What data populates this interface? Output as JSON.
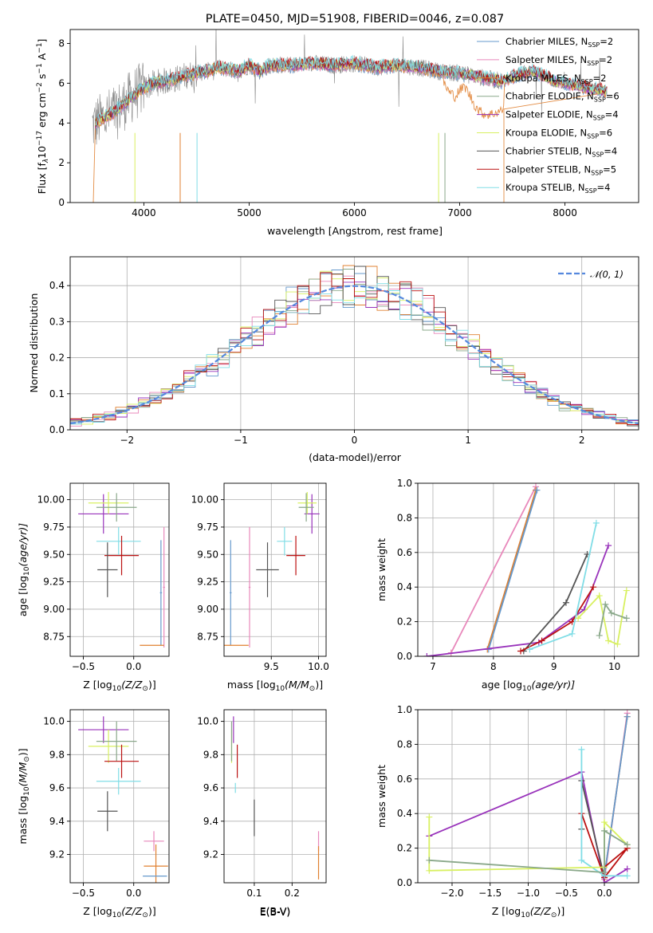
{
  "colors": {
    "CM": "#6699cc",
    "SM": "#e888bb",
    "KM": "#e08030",
    "CE": "#8aa88a",
    "SE": "#9933bb",
    "KE": "#d8f060",
    "CS": "#555555",
    "SS": "#bb1111",
    "KS": "#80dde6",
    "gauss": "#5588dd",
    "data": "#888888"
  },
  "chart_data": [
    {
      "id": "spectrum",
      "type": "line",
      "title": "PLATE=0450, MJD=51908, FIBERID=0046, z=0.087",
      "xlabel": "wavelength [Angstrom, rest frame]",
      "ylabel_main": "Flux [f",
      "ylabel_sub": "λ",
      "ylabel_rest": "10",
      "ylabel_exp1": "−17",
      "ylabel_mid": " erg cm",
      "ylabel_exp2": "−2",
      "ylabel_mid2": " s",
      "ylabel_exp3": "−1",
      "ylabel_mid3": " A",
      "ylabel_exp4": "−1",
      "ylabel_end": "]",
      "xlim": [
        3300,
        8700
      ],
      "ylim": [
        0,
        8.7
      ],
      "xticks": [
        "4000",
        "5000",
        "6000",
        "7000",
        "8000"
      ],
      "yticks": [
        "0",
        "2",
        "4",
        "6",
        "8"
      ],
      "xtickvals": [
        4000,
        5000,
        6000,
        7000,
        8000
      ],
      "ytickvals": [
        0,
        2,
        4,
        6,
        8
      ],
      "continuum_x": [
        3520,
        3600,
        3700,
        3800,
        3900,
        4000,
        4100,
        4200,
        4300,
        4400,
        4500,
        4600,
        4700,
        4800,
        4900,
        5000,
        5100,
        5200,
        5400,
        5600,
        5800,
        6000,
        6200,
        6400,
        6600,
        6800,
        7000,
        7100,
        7200,
        7300,
        7400,
        7500,
        7600,
        7700,
        7800,
        7900,
        8000,
        8100,
        8200,
        8300,
        8400
      ],
      "continuum_y": [
        3.9,
        4.2,
        4.5,
        4.9,
        5.4,
        5.8,
        6.0,
        6.1,
        6.2,
        6.4,
        6.5,
        6.6,
        6.8,
        6.7,
        6.6,
        6.9,
        6.6,
        6.9,
        6.9,
        7.0,
        6.9,
        7.0,
        6.8,
        6.9,
        6.8,
        6.6,
        6.5,
        6.4,
        6.3,
        6.2,
        6.1,
        6.3,
        6.5,
        6.6,
        6.4,
        6.1,
        6.0,
        5.9,
        5.8,
        5.7,
        5.6
      ],
      "red_dip_x": [
        6860,
        6900,
        6960,
        7000,
        7050,
        7100,
        7150,
        7200,
        7250,
        7300,
        7350,
        7400
      ],
      "red_dip_y": [
        6.0,
        5.6,
        5.4,
        5.7,
        5.9,
        5.4,
        4.9,
        4.6,
        4.5,
        4.5,
        4.6,
        4.7
      ],
      "legend": [
        {
          "name": "Chabrier MILES, N",
          "sub": "SSP",
          "tail": "=2",
          "key": "CM"
        },
        {
          "name": "Salpeter MILES, N",
          "sub": "SSP",
          "tail": "=2",
          "key": "SM"
        },
        {
          "name": "Kroupa MILES, N",
          "sub": "SSP",
          "tail": "=2",
          "key": "KM"
        },
        {
          "name": "Chabrier ELODIE, N",
          "sub": "SSP",
          "tail": "=6",
          "key": "CE"
        },
        {
          "name": "Salpeter ELODIE, N",
          "sub": "SSP",
          "tail": "=4",
          "key": "SE"
        },
        {
          "name": "Kroupa ELODIE, N",
          "sub": "SSP",
          "tail": "=6",
          "key": "KE"
        },
        {
          "name": "Chabrier STELIB, N",
          "sub": "SSP",
          "tail": "=4",
          "key": "CS"
        },
        {
          "name": "Salpeter STELIB, N",
          "sub": "SSP",
          "tail": "=5",
          "key": "SS"
        },
        {
          "name": "Kroupa STELIB, N",
          "sub": "SSP",
          "tail": "=4",
          "key": "KS"
        }
      ]
    },
    {
      "id": "residuals",
      "type": "histogram",
      "xlabel": "(data-model)/error",
      "ylabel": "Normed distribution",
      "xlim": [
        -2.5,
        2.5
      ],
      "ylim": [
        0,
        0.48
      ],
      "xticks": [
        "−2",
        "−1",
        "0",
        "1",
        "2"
      ],
      "xtickvals": [
        -2,
        -1,
        0,
        1,
        2
      ],
      "yticks": [
        "0.0",
        "0.1",
        "0.2",
        "0.3",
        "0.4"
      ],
      "ytickvals": [
        0,
        0.1,
        0.2,
        0.3,
        0.4
      ],
      "legend_label": "𝒩(0, 1)",
      "bin_width": 0.1
    },
    {
      "id": "age_Z",
      "type": "errorbar",
      "xlabel": "Z [log",
      "xlabel_sub": "10",
      "xlabel_rest": "(Z/Z",
      "xlabel_sub2": "⊙",
      "xlabel_end": ")]",
      "ylabel": "age  [log",
      "ylabel_sub": "10",
      "ylabel_rest": "(age/yr)]",
      "xlim": [
        -0.63,
        0.35
      ],
      "ylim": [
        8.57,
        10.15
      ],
      "xticks": [
        "−0.5",
        "0.0"
      ],
      "xtickvals": [
        -0.5,
        0
      ],
      "yticks": [
        "8.75",
        "9.00",
        "9.25",
        "9.50",
        "9.75",
        "10.00"
      ],
      "ytickvals": [
        8.75,
        9,
        9.25,
        9.5,
        9.75,
        10
      ],
      "points": [
        {
          "key": "SE",
          "x": -0.3,
          "xe": 0.25,
          "y": 9.87,
          "ye": 0.18
        },
        {
          "key": "KE",
          "x": -0.25,
          "xe": 0.2,
          "y": 9.97,
          "ye": 0.1
        },
        {
          "key": "CE",
          "x": -0.17,
          "xe": 0.2,
          "y": 9.93,
          "ye": 0.13
        },
        {
          "key": "KS",
          "x": -0.15,
          "xe": 0.22,
          "y": 9.62,
          "ye": 0.13
        },
        {
          "key": "SS",
          "x": -0.12,
          "xe": 0.17,
          "y": 9.49,
          "ye": 0.18
        },
        {
          "key": "CS",
          "x": -0.26,
          "xe": 0.1,
          "y": 9.36,
          "ye": 0.25
        },
        {
          "key": "SM",
          "x": 0.3,
          "xe": 0.01,
          "y": 9.2,
          "ye": 0.55
        },
        {
          "key": "CM",
          "x": 0.27,
          "xe": 0.01,
          "y": 9.15,
          "ye": 0.48
        },
        {
          "key": "KM",
          "x": 0.18,
          "xe": 0.12,
          "y": 8.67,
          "ye": 0.0
        }
      ]
    },
    {
      "id": "age_mass",
      "type": "errorbar",
      "xlabel": "mass [log",
      "xlabel_sub": "10",
      "xlabel_rest": "(M/M",
      "xlabel_sub2": "⊙",
      "xlabel_end": ")]",
      "xlim": [
        9.0,
        10.08
      ],
      "ylim": [
        8.57,
        10.15
      ],
      "xticks": [
        "9.5",
        "10.0"
      ],
      "xtickvals": [
        9.5,
        10
      ],
      "yticks": [
        "8.75",
        "9.00",
        "9.25",
        "9.50",
        "9.75",
        "10.00"
      ],
      "ytickvals": [
        8.75,
        9,
        9.25,
        9.5,
        9.75,
        10
      ],
      "points": [
        {
          "key": "SE",
          "x": 9.93,
          "xe": 0.08,
          "y": 9.87,
          "ye": 0.18
        },
        {
          "key": "KE",
          "x": 9.88,
          "xe": 0.1,
          "y": 9.97,
          "ye": 0.1
        },
        {
          "key": "CE",
          "x": 9.87,
          "xe": 0.08,
          "y": 9.93,
          "ye": 0.13
        },
        {
          "key": "KS",
          "x": 9.64,
          "xe": 0.08,
          "y": 9.62,
          "ye": 0.13
        },
        {
          "key": "SS",
          "x": 9.76,
          "xe": 0.1,
          "y": 9.49,
          "ye": 0.18
        },
        {
          "key": "CS",
          "x": 9.46,
          "xe": 0.12,
          "y": 9.36,
          "ye": 0.25
        },
        {
          "key": "SM",
          "x": 9.27,
          "xe": 0.01,
          "y": 9.2,
          "ye": 0.55
        },
        {
          "key": "CM",
          "x": 9.07,
          "xe": 0.01,
          "y": 9.15,
          "ye": 0.48
        },
        {
          "key": "KM",
          "x": 9.13,
          "xe": 0.13,
          "y": 8.67,
          "ye": 0.0
        }
      ]
    },
    {
      "id": "weight_age",
      "type": "line",
      "xlabel": "age  [log",
      "xlabel_sub": "10",
      "xlabel_rest": "(age/yr)]",
      "ylabel": "mass weight",
      "xlim": [
        6.75,
        10.4
      ],
      "ylim": [
        0,
        1.0
      ],
      "xticks": [
        "7",
        "8",
        "9",
        "10"
      ],
      "xtickvals": [
        7,
        8,
        9,
        10
      ],
      "yticks": [
        "0.0",
        "0.2",
        "0.4",
        "0.6",
        "0.8",
        "1.0"
      ],
      "ytickvals": [
        0,
        0.2,
        0.4,
        0.6,
        0.8,
        1.0
      ],
      "series": [
        {
          "key": "SM",
          "x": [
            7.3,
            8.7
          ],
          "y": [
            0.02,
            0.98
          ]
        },
        {
          "key": "KM",
          "x": [
            7.9,
            8.7
          ],
          "y": [
            0.04,
            0.96
          ]
        },
        {
          "key": "CM",
          "x": [
            7.92,
            8.72
          ],
          "y": [
            0.04,
            0.96
          ]
        },
        {
          "key": "SE",
          "x": [
            6.9,
            8.75,
            9.5,
            9.9
          ],
          "y": [
            0.0,
            0.08,
            0.27,
            0.64
          ]
        },
        {
          "key": "CS",
          "x": [
            8.5,
            9.2,
            9.55
          ],
          "y": [
            0.03,
            0.31,
            0.59
          ]
        },
        {
          "key": "SS",
          "x": [
            8.45,
            8.8,
            9.3,
            9.65
          ],
          "y": [
            0.03,
            0.09,
            0.2,
            0.4
          ]
        },
        {
          "key": "KS",
          "x": [
            8.6,
            9.3,
            9.7
          ],
          "y": [
            0.04,
            0.13,
            0.77
          ]
        },
        {
          "key": "KE",
          "x": [
            9.4,
            9.75,
            9.9,
            10.05,
            10.2
          ],
          "y": [
            0.22,
            0.35,
            0.09,
            0.07,
            0.38
          ]
        },
        {
          "key": "CE",
          "x": [
            9.75,
            9.85,
            9.95,
            10.2
          ],
          "y": [
            0.12,
            0.3,
            0.25,
            0.22
          ]
        }
      ]
    },
    {
      "id": "mass_Z",
      "type": "errorbar",
      "xlabel": "Z [log",
      "xlabel_sub": "10",
      "xlabel_rest": "(Z/Z",
      "xlabel_sub2": "⊙",
      "xlabel_end": ")]",
      "ylabel": "mass [log",
      "ylabel_sub": "10",
      "ylabel_rest": "(M/M",
      "ylabel_sub2": "⊙",
      "ylabel_end": ")]",
      "xlim": [
        -0.63,
        0.35
      ],
      "ylim": [
        9.03,
        10.07
      ],
      "xticks": [
        "−0.5",
        "0.0"
      ],
      "xtickvals": [
        -0.5,
        0
      ],
      "yticks": [
        "9.2",
        "9.4",
        "9.6",
        "9.8",
        "10.0"
      ],
      "ytickvals": [
        9.2,
        9.4,
        9.6,
        9.8,
        10.0
      ],
      "points": [
        {
          "key": "SE",
          "x": -0.3,
          "xe": 0.25,
          "y": 9.95,
          "ye": 0.08
        },
        {
          "key": "KE",
          "x": -0.25,
          "xe": 0.2,
          "y": 9.85,
          "ye": 0.1
        },
        {
          "key": "CE",
          "x": -0.17,
          "xe": 0.2,
          "y": 9.88,
          "ye": 0.12
        },
        {
          "key": "SS",
          "x": -0.12,
          "xe": 0.17,
          "y": 9.76,
          "ye": 0.1
        },
        {
          "key": "KS",
          "x": -0.15,
          "xe": 0.22,
          "y": 9.64,
          "ye": 0.08
        },
        {
          "key": "CS",
          "x": -0.26,
          "xe": 0.1,
          "y": 9.46,
          "ye": 0.12
        },
        {
          "key": "SM",
          "x": 0.2,
          "xe": 0.1,
          "y": 9.28,
          "ye": 0.06
        },
        {
          "key": "KM",
          "x": 0.22,
          "xe": 0.12,
          "y": 9.13,
          "ye": 0.13
        },
        {
          "key": "CM",
          "x": 0.21,
          "xe": 0.12,
          "y": 9.07,
          "ye": 0.0
        }
      ]
    },
    {
      "id": "mass_ebv",
      "type": "errorbar",
      "xlabel": "E(B-V)",
      "xlim": [
        0.02,
        0.29
      ],
      "ylim": [
        9.03,
        10.07
      ],
      "xticks": [
        "0.1",
        "0.2"
      ],
      "xtickvals": [
        0.1,
        0.2
      ],
      "yticks": [
        "9.2",
        "9.4",
        "9.6",
        "9.8",
        "10.0"
      ],
      "ytickvals": [
        9.2,
        9.4,
        9.6,
        9.8,
        10.0
      ],
      "points": [
        {
          "key": "SE",
          "x": 0.045,
          "xe": 0,
          "y": 9.95,
          "ye": 0.08
        },
        {
          "key": "KE",
          "x": 0.04,
          "xe": 0,
          "y": 9.85,
          "ye": 0.1
        },
        {
          "key": "CE",
          "x": 0.04,
          "xe": 0,
          "y": 9.88,
          "ye": 0.12
        },
        {
          "key": "SS",
          "x": 0.055,
          "xe": 0,
          "y": 9.76,
          "ye": 0.1
        },
        {
          "key": "KS",
          "x": 0.05,
          "xe": 0,
          "y": 9.6,
          "ye": 0.03
        },
        {
          "key": "CS",
          "x": 0.1,
          "xe": 0,
          "y": 9.42,
          "ye": 0.11
        },
        {
          "key": "SM",
          "x": 0.27,
          "xe": 0,
          "y": 9.28,
          "ye": 0.06
        },
        {
          "key": "KM",
          "x": 0.27,
          "xe": 0,
          "y": 9.15,
          "ye": 0.1
        },
        {
          "key": "CM",
          "x": 0.27,
          "xe": 0,
          "y": 9.07,
          "ye": 0.0
        }
      ]
    },
    {
      "id": "weight_Z",
      "type": "line",
      "xlabel": "Z [log",
      "xlabel_sub": "10",
      "xlabel_rest": "(Z/Z",
      "xlabel_sub2": "⊙",
      "xlabel_end": ")]",
      "ylabel": "mass weight",
      "xlim": [
        -2.45,
        0.45
      ],
      "ylim": [
        0,
        1.0
      ],
      "xticks": [
        "−2.0",
        "−1.5",
        "−1.0",
        "−0.5",
        "0.0"
      ],
      "xtickvals": [
        -2,
        -1.5,
        -1,
        -0.5,
        0
      ],
      "yticks": [
        "0.0",
        "0.2",
        "0.4",
        "0.6",
        "0.8",
        "1.0"
      ],
      "ytickvals": [
        0,
        0.2,
        0.4,
        0.6,
        0.8,
        1.0
      ],
      "series": [
        {
          "key": "SM",
          "x": [
            0.0,
            0.3
          ],
          "y": [
            0.02,
            0.98
          ]
        },
        {
          "key": "KM",
          "x": [
            0.0,
            0.3
          ],
          "y": [
            0.04,
            0.96
          ]
        },
        {
          "key": "CM",
          "x": [
            0.0,
            0.3
          ],
          "y": [
            0.04,
            0.96
          ]
        },
        {
          "key": "SE",
          "x": [
            -2.3,
            -0.3,
            0.0,
            0.3
          ],
          "y": [
            0.27,
            0.64,
            0.0,
            0.08
          ]
        },
        {
          "key": "CS",
          "x": [
            -0.3,
            -0.3,
            0.0
          ],
          "y": [
            0.31,
            0.59,
            0.03
          ]
        },
        {
          "key": "SS",
          "x": [
            -0.3,
            0.0,
            0.3,
            0.0
          ],
          "y": [
            0.4,
            0.03,
            0.2,
            0.09
          ]
        },
        {
          "key": "KS",
          "x": [
            -0.3,
            -0.3,
            0.0,
            0.3
          ],
          "y": [
            0.77,
            0.13,
            0.04,
            0.04
          ]
        },
        {
          "key": "KE",
          "x": [
            -2.3,
            -2.3,
            0.0,
            0.0,
            0.3
          ],
          "y": [
            0.38,
            0.07,
            0.09,
            0.35,
            0.22
          ]
        },
        {
          "key": "CE",
          "x": [
            -2.3,
            0.0,
            0.0,
            0.3
          ],
          "y": [
            0.13,
            0.06,
            0.3,
            0.22
          ]
        }
      ]
    }
  ]
}
